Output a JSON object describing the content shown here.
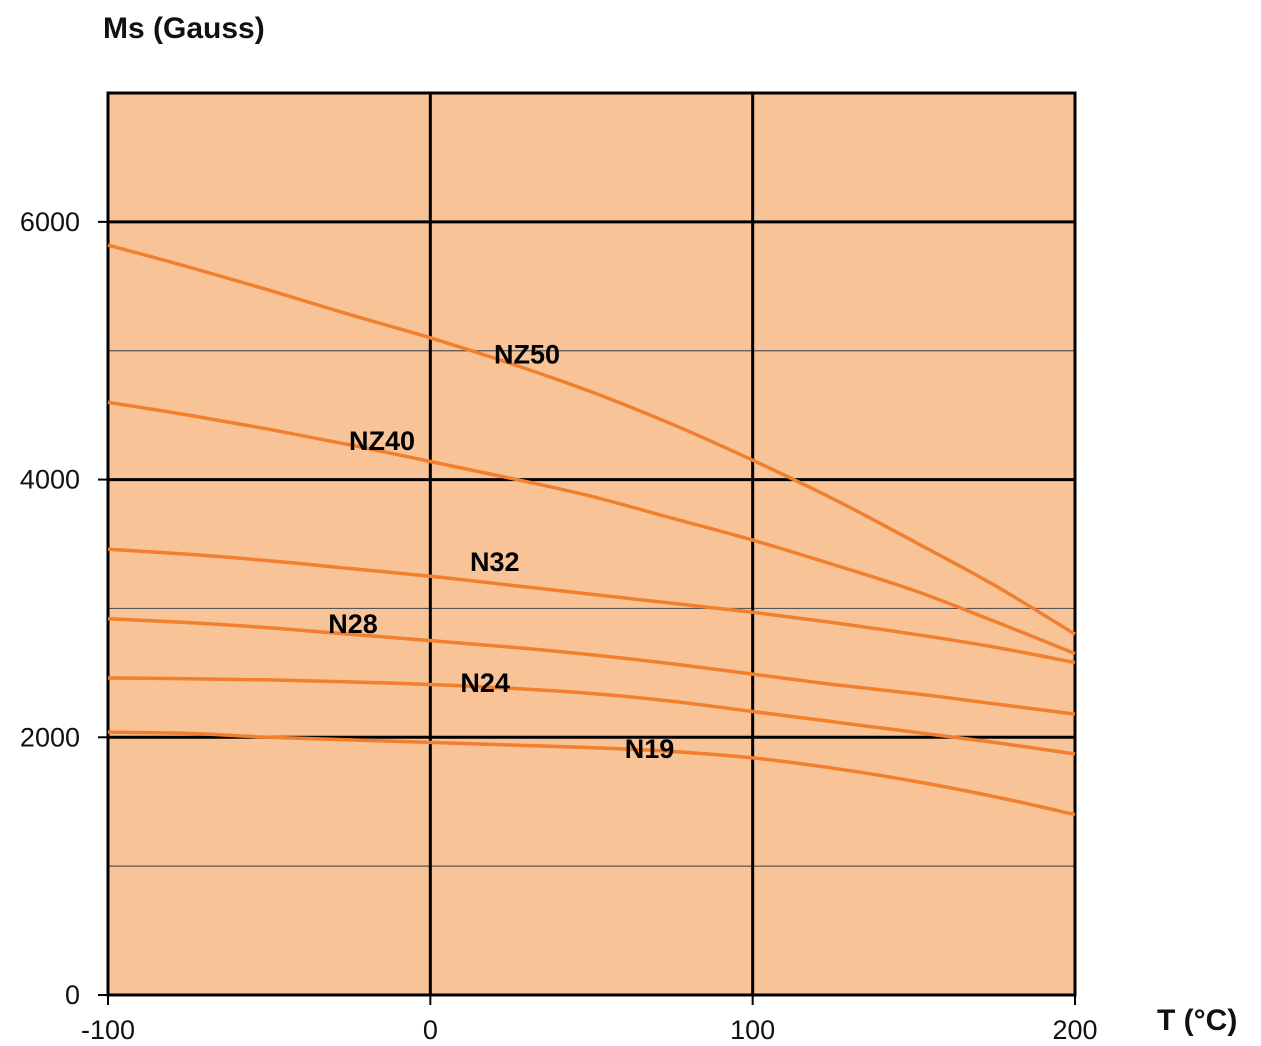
{
  "chart_data": {
    "type": "line",
    "xlabel": "T (°C)",
    "ylabel": "Ms (Gauss)",
    "xlim": [
      -100,
      200
    ],
    "ylim": [
      0,
      7000
    ],
    "x_ticks": [
      -100,
      0,
      100,
      200
    ],
    "y_ticks": [
      0,
      2000,
      4000,
      6000
    ],
    "major_gridlines_y": [
      2000,
      4000,
      6000
    ],
    "minor_gridlines_y": [
      1000,
      3000,
      5000
    ],
    "gridlines_x": [
      0,
      100
    ],
    "grid": true,
    "legend": "inline labels",
    "colors": {
      "plot_background": "#f9c398",
      "series_line": "#f07f2e",
      "gridline": "#000000"
    },
    "series": [
      {
        "name": "NZ50",
        "x": [
          -100,
          -75,
          -50,
          -25,
          0,
          25,
          50,
          75,
          100,
          125,
          150,
          175,
          200
        ],
        "values": [
          5820,
          5650,
          5470,
          5280,
          5100,
          4900,
          4680,
          4430,
          4150,
          3850,
          3520,
          3180,
          2800
        ]
      },
      {
        "name": "NZ40",
        "x": [
          -100,
          -75,
          -50,
          -25,
          0,
          25,
          50,
          75,
          100,
          125,
          150,
          175,
          200
        ],
        "values": [
          4600,
          4500,
          4390,
          4270,
          4140,
          4010,
          3870,
          3700,
          3530,
          3340,
          3140,
          2900,
          2650
        ]
      },
      {
        "name": "N32",
        "x": [
          -100,
          -75,
          -50,
          -25,
          0,
          25,
          50,
          75,
          100,
          125,
          150,
          175,
          200
        ],
        "values": [
          3460,
          3420,
          3370,
          3310,
          3250,
          3180,
          3110,
          3040,
          2970,
          2890,
          2800,
          2700,
          2580
        ]
      },
      {
        "name": "N28",
        "x": [
          -100,
          -75,
          -50,
          -25,
          0,
          25,
          50,
          75,
          100,
          125,
          150,
          175,
          200
        ],
        "values": [
          2920,
          2890,
          2850,
          2800,
          2750,
          2700,
          2640,
          2570,
          2490,
          2410,
          2340,
          2260,
          2180
        ]
      },
      {
        "name": "N24",
        "x": [
          -100,
          -75,
          -50,
          -25,
          0,
          25,
          50,
          75,
          100,
          125,
          150,
          175,
          200
        ],
        "values": [
          2460,
          2455,
          2445,
          2430,
          2410,
          2380,
          2340,
          2280,
          2200,
          2120,
          2040,
          1960,
          1870
        ]
      },
      {
        "name": "N19",
        "x": [
          -100,
          -75,
          -50,
          -25,
          0,
          25,
          50,
          75,
          100,
          125,
          150,
          175,
          200
        ],
        "values": [
          2040,
          2030,
          2000,
          1980,
          1960,
          1940,
          1920,
          1890,
          1840,
          1760,
          1660,
          1540,
          1400
        ]
      }
    ]
  }
}
